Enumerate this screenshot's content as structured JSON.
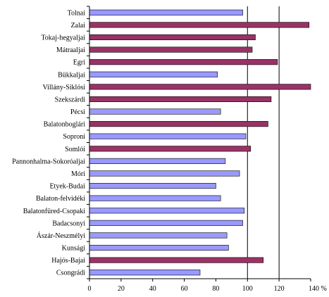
{
  "chart_data": {
    "type": "bar",
    "orientation": "horizontal",
    "categories": [
      "Tolnai",
      "Zalai",
      "Tokaj-hegyaljai",
      "Mátraaljai",
      "Egri",
      "Bükkaljai",
      "Villány-Siklósi",
      "Szekszárdi",
      "Pécsi",
      "Balatonboglári",
      "Soproni",
      "Somlói",
      "Pannonhalma-Sokoróaljai",
      "Móri",
      "Etyek-Budai",
      "Balaton-felvidéki",
      "Balatonfüred-Csopaki",
      "Badacsonyi",
      "Ászár-Neszmélyi",
      "Kunsági",
      "Hajós-Bajai",
      "Csongrádi"
    ],
    "values": [
      97,
      139,
      105,
      103,
      119,
      81,
      140,
      115,
      83,
      113,
      99,
      102,
      86,
      95,
      80,
      83,
      98,
      97,
      87,
      88,
      110,
      70
    ],
    "highlighted": [
      false,
      true,
      true,
      true,
      true,
      false,
      true,
      true,
      false,
      true,
      false,
      true,
      false,
      false,
      false,
      false,
      false,
      false,
      false,
      false,
      true,
      false
    ],
    "xlim": [
      0,
      140
    ],
    "x_ticks": [
      "0",
      "20",
      "40",
      "60",
      "80",
      "100",
      "120",
      "140 %"
    ],
    "gridlines": [
      100,
      120
    ],
    "colors": {
      "above_100": "#993366",
      "below_100": "#9999FF",
      "bar_border": "#000000",
      "gridline": "#000000"
    },
    "title": "",
    "xlabel": "",
    "ylabel": ""
  }
}
